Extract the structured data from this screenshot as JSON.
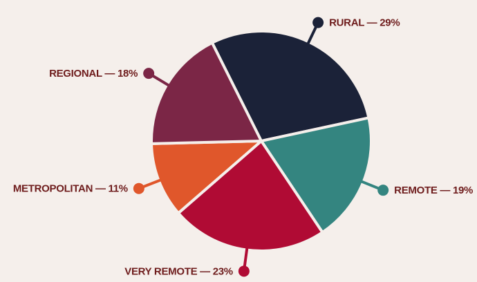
{
  "chart_data": {
    "type": "pie",
    "values": [
      29,
      19,
      23,
      11,
      18
    ],
    "value_labels": [
      "RURAL — 29%",
      "REMOTE — 19%",
      "VERY REMOTE — 23%",
      "METROPOLITAN — 11%",
      "REGIONAL — 18%"
    ],
    "colors": [
      "#1b2238",
      "#348580",
      "#b00b34",
      "#e0572b",
      "#7b2646"
    ]
  }
}
